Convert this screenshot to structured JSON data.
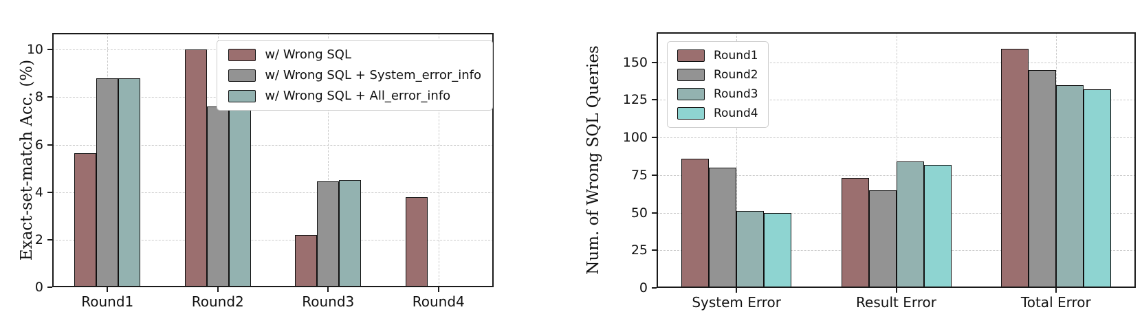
{
  "figure": {
    "background": "#ffffff",
    "grid_color": "#c9c9c9",
    "spine_color": "#1a1a1a",
    "bar_edge_color": "#101010"
  },
  "chart_data": [
    {
      "type": "bar",
      "title": "",
      "xlabel": "",
      "ylabel": "Exact-set-match Acc. (%)",
      "categories": [
        "Round1",
        "Round2",
        "Round3",
        "Round4"
      ],
      "yticks": [
        0,
        2,
        4,
        6,
        8,
        10
      ],
      "ylim": [
        0,
        10.7
      ],
      "grid": true,
      "legend_position": "upper right",
      "series": [
        {
          "name": "w/ Wrong SQL",
          "color": "#9b6f6f",
          "values": [
            5.65,
            10.0,
            2.2,
            3.8
          ]
        },
        {
          "name": "w/ Wrong SQL + System_error_info",
          "color": "#939393",
          "values": [
            8.8,
            7.6,
            4.45,
            0.05
          ]
        },
        {
          "name": "w/ Wrong SQL + All_error_info",
          "color": "#93b2b0",
          "values": [
            8.8,
            8.3,
            4.5,
            0.05
          ]
        }
      ]
    },
    {
      "type": "bar",
      "title": "",
      "xlabel": "",
      "ylabel": "Num. of Wrong SQL Queries",
      "categories": [
        "System Error",
        "Result Error",
        "Total Error"
      ],
      "yticks": [
        0,
        25,
        50,
        75,
        100,
        125,
        150
      ],
      "ylim": [
        0,
        170
      ],
      "grid": true,
      "legend_position": "upper left",
      "series": [
        {
          "name": "Round1",
          "color": "#9b6f6f",
          "values": [
            86,
            73,
            159
          ]
        },
        {
          "name": "Round2",
          "color": "#939393",
          "values": [
            80,
            65,
            145
          ]
        },
        {
          "name": "Round3",
          "color": "#93b2b0",
          "values": [
            51,
            84,
            135
          ]
        },
        {
          "name": "Round4",
          "color": "#8ed4d1",
          "values": [
            50,
            82,
            132
          ]
        }
      ]
    }
  ]
}
